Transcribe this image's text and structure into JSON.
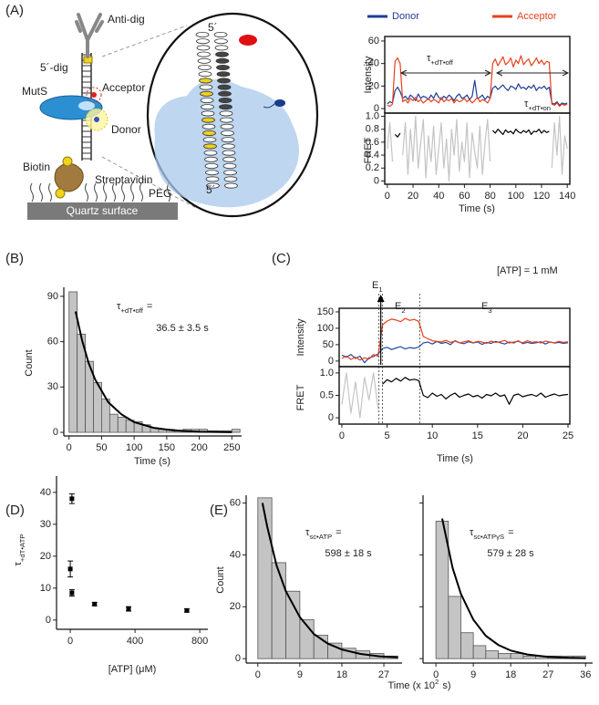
{
  "panels": [
    "(A)",
    "(B)",
    "(C)",
    "(D)",
    "(E)"
  ],
  "diagram": {
    "anti_dig": "Anti-dig",
    "dig": "5´-dig",
    "muts": "MutS",
    "acceptor": "Acceptor",
    "donor": "Donor",
    "biotin": "Biotin",
    "streptavidin": "Streptavidin",
    "peg": "PEG",
    "quartz": "Quartz surface",
    "five_top": "5´",
    "five_bottom": "5´"
  },
  "chart_data": [
    {
      "type": "line",
      "ylabel": "Intensity",
      "xlim": [
        -2,
        142
      ],
      "ylim": [
        -4,
        64
      ],
      "yticks": [
        0,
        20,
        40,
        60
      ],
      "x": [
        0,
        2,
        4,
        6,
        8,
        10,
        12,
        14,
        16,
        18,
        20,
        22,
        24,
        26,
        28,
        30,
        32,
        34,
        36,
        38,
        40,
        42,
        44,
        46,
        48,
        50,
        52,
        54,
        56,
        58,
        60,
        62,
        64,
        66,
        68,
        70,
        72,
        74,
        76,
        78,
        80,
        82,
        84,
        86,
        88,
        90,
        92,
        94,
        96,
        98,
        100,
        102,
        104,
        106,
        108,
        110,
        112,
        114,
        116,
        118,
        120,
        122,
        124,
        126,
        128,
        130,
        132,
        134,
        136,
        138,
        140
      ],
      "series": [
        {
          "name": "Donor",
          "color": "#1f3c96",
          "values": [
            4,
            6,
            5,
            16,
            19,
            15,
            9,
            11,
            8,
            12,
            10,
            7,
            13,
            9,
            11,
            10,
            8,
            12,
            9,
            14,
            10,
            8,
            11,
            9,
            12,
            10,
            7,
            11,
            13,
            9,
            10,
            12,
            8,
            11,
            25,
            9,
            10,
            12,
            8,
            11,
            9,
            18,
            20,
            17,
            19,
            21,
            18,
            16,
            20,
            19,
            17,
            22,
            18,
            19,
            17,
            20,
            18,
            21,
            16,
            19,
            18,
            20,
            17,
            19,
            5,
            4,
            6,
            3,
            5,
            4,
            5
          ]
        },
        {
          "name": "Acceptor",
          "color": "#e8401c",
          "values": [
            3,
            2,
            4,
            42,
            45,
            40,
            6,
            8,
            5,
            9,
            7,
            10,
            6,
            8,
            5,
            7,
            9,
            6,
            8,
            7,
            5,
            10,
            6,
            8,
            7,
            9,
            5,
            8,
            6,
            7,
            9,
            6,
            8,
            5,
            7,
            10,
            6,
            8,
            7,
            5,
            9,
            40,
            44,
            38,
            42,
            46,
            39,
            41,
            45,
            37,
            43,
            40,
            47,
            39,
            42,
            44,
            38,
            41,
            45,
            40,
            43,
            39,
            42,
            41,
            4,
            3,
            5,
            2,
            4,
            3,
            4
          ]
        }
      ],
      "annotations": [
        {
          "main": "τ",
          "sub": "+dT•off"
        },
        {
          "main": "τ",
          "sub": "+dT•on"
        }
      ]
    },
    {
      "type": "line",
      "ylabel": "FRET",
      "xlabel": "Time (s)",
      "xlim": [
        -2,
        142
      ],
      "ylim": [
        -0.05,
        1.05
      ],
      "yticks": [
        0,
        0.2,
        0.4,
        0.6,
        0.8,
        {
          "value": 1,
          "label": "1.0"
        }
      ],
      "xticks": [
        0,
        20,
        40,
        60,
        80,
        100,
        120,
        140
      ],
      "x": [
        0,
        2,
        4,
        6,
        8,
        10,
        12,
        14,
        16,
        18,
        20,
        22,
        24,
        26,
        28,
        30,
        32,
        34,
        36,
        38,
        40,
        42,
        44,
        46,
        48,
        50,
        52,
        54,
        56,
        58,
        60,
        62,
        64,
        66,
        68,
        70,
        72,
        74,
        76,
        78,
        80,
        82,
        84,
        86,
        88,
        90,
        92,
        94,
        96,
        98,
        100,
        102,
        104,
        106,
        108,
        110,
        112,
        114,
        116,
        118,
        120,
        122,
        124,
        126,
        128,
        130,
        132,
        134,
        136,
        138,
        140
      ],
      "series": [
        {
          "color": "#c4c4c4",
          "values": [
            0.5,
            0.9,
            0.3,
            null,
            null,
            null,
            0.4,
            0.9,
            0.1,
            0.8,
            0.3,
            1.0,
            0.2,
            0.6,
            0.95,
            0.05,
            0.7,
            0.3,
            0.85,
            0.1,
            0.5,
            0.9,
            0.2,
            0.65,
            0.0,
            0.8,
            0.4,
            0.95,
            0.15,
            0.6,
            0.3,
            0.9,
            0.05,
            0.75,
            0.45,
            0.2,
            0.85,
            0.1,
            0.6,
            0.95,
            0.3,
            null,
            null,
            null,
            null,
            null,
            null,
            null,
            null,
            null,
            null,
            null,
            null,
            null,
            null,
            null,
            null,
            null,
            null,
            null,
            null,
            null,
            null,
            null,
            0.2,
            0.9,
            0.4,
            1.0,
            0.1,
            0.7,
            0.5
          ]
        },
        {
          "color": "#000000",
          "x": [
            6,
            8,
            10,
            12,
            82,
            84,
            86,
            88,
            90,
            92,
            94,
            96,
            98,
            100,
            102,
            104,
            106,
            108,
            110,
            112,
            114,
            116,
            118,
            120,
            122,
            124,
            126
          ],
          "values": [
            0.72,
            0.68,
            0.74,
            null,
            0.78,
            0.74,
            0.8,
            0.76,
            0.72,
            0.79,
            0.75,
            0.77,
            0.73,
            0.8,
            0.76,
            0.74,
            0.78,
            0.75,
            0.79,
            0.72,
            0.77,
            0.76,
            0.8,
            0.74,
            0.78,
            0.75,
            0.77
          ]
        }
      ]
    },
    {
      "type": "histogram",
      "ylabel": "Count",
      "xlabel": "Time (s)",
      "xlim": [
        -8,
        265
      ],
      "ylim": [
        -2.4,
        96
      ],
      "xticks": [
        0,
        50,
        100,
        150,
        200,
        250
      ],
      "yticks": [
        0,
        30,
        60,
        90
      ],
      "bins": [
        0,
        12.5,
        25,
        37.5,
        50,
        62.5,
        75,
        87.5,
        100,
        112.5,
        125,
        137.5,
        150,
        162.5,
        175,
        187.5,
        200,
        212.5,
        225,
        237.5,
        250,
        262.5
      ],
      "counts": [
        93,
        65,
        47,
        33,
        22,
        12,
        10,
        8,
        7,
        5,
        3,
        2,
        2,
        1,
        2,
        2,
        2,
        1,
        1,
        1,
        2
      ],
      "fit": {
        "x": [
          10,
          20,
          30,
          40,
          60,
          80,
          100,
          130,
          160,
          200,
          250
        ],
        "values": [
          80,
          61,
          46,
          35,
          20,
          12,
          6.8,
          3,
          1.3,
          0.4,
          0.1
        ]
      },
      "annotation": {
        "main": "τ",
        "sub": "+dT•off",
        "rest": "=",
        "line2": "36.5 ± 3.5 s"
      }
    },
    {
      "type": "line",
      "ylabel": "Intensity",
      "xlim": [
        -0.3,
        25.2
      ],
      "ylim": [
        -17,
        161
      ],
      "yticks": [
        0,
        50,
        100,
        150
      ],
      "note": "[ATP] = 1 mM",
      "states": [
        {
          "main": "E",
          "sub": "1"
        },
        {
          "main": "E",
          "sub": "2"
        },
        {
          "main": "E",
          "sub": "3"
        }
      ],
      "markers": [
        4.1,
        4.5,
        8.6
      ],
      "x": [
        0,
        0.5,
        1,
        1.5,
        2,
        2.5,
        3,
        3.5,
        4,
        4.5,
        5,
        5.5,
        6,
        6.5,
        7,
        7.5,
        8,
        8.5,
        9,
        9.5,
        10,
        10.5,
        11,
        11.5,
        12,
        12.5,
        13,
        13.5,
        14,
        14.5,
        15,
        15.5,
        16,
        16.5,
        17,
        17.5,
        18,
        18.5,
        19,
        19.5,
        20,
        20.5,
        21,
        21.5,
        22,
        22.5,
        23,
        23.5,
        24,
        24.5,
        25
      ],
      "series": [
        {
          "color": "#1f4aa0",
          "values": [
            18,
            12,
            20,
            8,
            15,
            -5,
            10,
            14,
            22,
            38,
            42,
            35,
            40,
            44,
            37,
            41,
            39,
            43,
            55,
            58,
            52,
            60,
            54,
            57,
            50,
            62,
            56,
            53,
            59,
            55,
            58,
            51,
            57,
            54,
            60,
            56,
            52,
            58,
            55,
            62,
            53,
            57,
            54,
            56,
            59,
            52,
            58,
            55,
            57,
            54,
            56
          ]
        },
        {
          "color": "#e8401c",
          "values": [
            8,
            15,
            5,
            12,
            3,
            10,
            6,
            20,
            15,
            110,
            122,
            128,
            125,
            120,
            130,
            124,
            127,
            121,
            75,
            68,
            62,
            60,
            58,
            63,
            57,
            61,
            55,
            59,
            62,
            56,
            60,
            58,
            54,
            61,
            57,
            59,
            63,
            55,
            58,
            60,
            56,
            62,
            57,
            59,
            55,
            61,
            58,
            56,
            60,
            57,
            59
          ]
        }
      ]
    },
    {
      "type": "line",
      "ylabel": "FRET",
      "xlabel": "Time (s)",
      "xlim": [
        -0.3,
        25.2
      ],
      "ylim": [
        -0.14,
        1.14
      ],
      "yticks": [
        0,
        0.5,
        {
          "value": 1,
          "label": "1.0"
        }
      ],
      "xticks": [
        0,
        5,
        10,
        15,
        20,
        25
      ],
      "series": [
        {
          "color": "#c4c4c4",
          "x": [
            0,
            0.5,
            1,
            1.5,
            2,
            2.5,
            3,
            3.5,
            4
          ],
          "values": [
            0.3,
            1.0,
            0.1,
            0.8,
            0.0,
            0.9,
            0.4,
            1.0,
            0.2
          ]
        },
        {
          "color": "#000000",
          "x": [
            4.5,
            5,
            5.5,
            6,
            6.5,
            7,
            7.5,
            8,
            8.5,
            9,
            9.5,
            10,
            10.5,
            11,
            11.5,
            12,
            12.5,
            13,
            13.5,
            14,
            14.5,
            15,
            15.5,
            16,
            16.5,
            17,
            17.5,
            18,
            18.5,
            19,
            19.5,
            20,
            20.5,
            21,
            21.5,
            22,
            22.5,
            23,
            23.5,
            24,
            24.5,
            25
          ],
          "values": [
            0.75,
            0.85,
            0.8,
            0.88,
            0.82,
            0.9,
            0.84,
            0.86,
            0.83,
            0.5,
            0.45,
            0.55,
            0.48,
            0.52,
            0.42,
            0.5,
            0.55,
            0.46,
            0.5,
            0.53,
            0.47,
            0.5,
            0.44,
            0.52,
            0.49,
            0.55,
            0.48,
            0.51,
            0.3,
            0.5,
            0.53,
            0.47,
            0.5,
            0.52,
            0.48,
            0.55,
            0.46,
            0.5,
            0.53,
            0.49,
            0.51,
            0.52
          ]
        }
      ]
    },
    {
      "type": "scatter",
      "ylabel": {
        "main": "τ",
        "sub": "+dT•ATP"
      },
      "xlabel": "[ATP] (μM)",
      "xlim": [
        -85,
        850
      ],
      "ylim": [
        -2.9,
        45.1
      ],
      "xticks": [
        0,
        400,
        800
      ],
      "yticks": [
        0,
        10,
        20,
        30,
        40
      ],
      "color": "#000000",
      "x": [
        10,
        0,
        10,
        150,
        360,
        720
      ],
      "values": [
        38,
        16,
        8.5,
        5,
        3.5,
        3
      ],
      "yerr": [
        1.5,
        2.5,
        1,
        0.5,
        0.7,
        0.5
      ]
    },
    {
      "type": "histogram",
      "ylabel": "Count",
      "xlabel": {
        "main": "Time (x 10",
        "sup": "2",
        "rest": "s)"
      },
      "xlim": [
        -2.5,
        30.9
      ],
      "ylim": [
        -1.7,
        63
      ],
      "xticks": [
        0,
        9,
        18,
        27
      ],
      "yticks": [
        0,
        20,
        40,
        60
      ],
      "bins": [
        0,
        3,
        6,
        9,
        12,
        15,
        18,
        21,
        24,
        27,
        30
      ],
      "counts": [
        62,
        37,
        26,
        15,
        9,
        6,
        4,
        3,
        2,
        1
      ],
      "fit": {
        "x": [
          1,
          2,
          4,
          6,
          9,
          12,
          15,
          18,
          22,
          26,
          30
        ],
        "values": [
          60,
          51,
          36,
          26,
          16,
          9.5,
          5.8,
          3.5,
          1.8,
          0.9,
          0.5
        ]
      },
      "annotation": {
        "main": "τ",
        "sub": "sc•ATP",
        "rest": "=",
        "line2": "598 ± 18 s"
      }
    },
    {
      "type": "histogram",
      "xlim": [
        -3.1,
        37.7
      ],
      "ylim": [
        -1.7,
        63
      ],
      "show_ytick_labels": false,
      "xticks": [
        0,
        9,
        18,
        27,
        36
      ],
      "yticks": [
        0,
        20,
        40,
        60
      ],
      "bins": [
        0,
        3,
        6,
        9,
        12,
        15,
        18,
        21,
        24,
        27,
        30,
        33,
        36
      ],
      "counts": [
        53,
        24,
        10,
        5,
        3,
        2,
        2,
        1,
        1,
        1,
        1,
        1
      ],
      "fit": {
        "x": [
          1.5,
          4,
          6,
          9,
          12,
          15,
          18,
          22,
          27,
          32,
          36
        ],
        "values": [
          54,
          35,
          25,
          15,
          8.8,
          5.3,
          3.1,
          1.6,
          0.7,
          0.3,
          0.15
        ]
      },
      "annotation": {
        "main": "τ",
        "sub": "sc•ATPγS",
        "rest": "=",
        "line2": "579 ± 28 s"
      }
    }
  ]
}
